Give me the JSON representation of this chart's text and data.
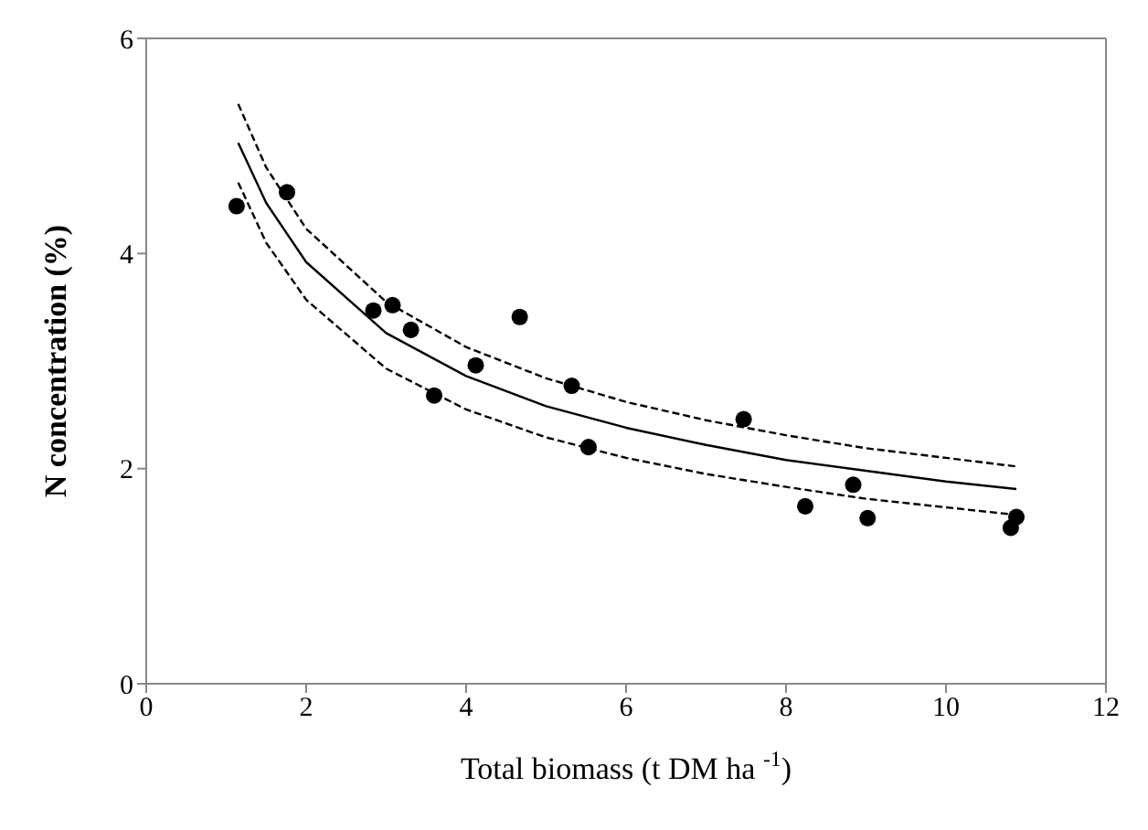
{
  "chart_data": {
    "type": "scatter",
    "xlabel": "Total biomass (t DM ha $^{-1}$)",
    "ylabel": "N concentration (%)",
    "xlim": [
      0,
      12
    ],
    "xticks": [
      0,
      2,
      4,
      6,
      8,
      10,
      12
    ],
    "ylim": [
      0,
      6
    ],
    "yticks": [
      0,
      2,
      4,
      6
    ],
    "grid": false,
    "legend": false,
    "series": [
      {
        "color": "#000000",
        "marker": "circle",
        "x": [
          1.13,
          1.76,
          2.84,
          3.08,
          3.31,
          3.6,
          4.12,
          4.67,
          5.32,
          5.53,
          7.47,
          8.24,
          8.84,
          9.02,
          10.88,
          10.81
        ],
        "values": [
          4.44,
          4.57,
          3.47,
          3.52,
          3.29,
          2.68,
          2.96,
          3.41,
          2.77,
          2.2,
          2.46,
          1.65,
          1.85,
          1.54,
          1.55,
          1.45
        ]
      },
      {
        "type": "line",
        "color": "#000000",
        "marker": "none",
        "line_style": "solid",
        "x": [
          1.15,
          1.5,
          2,
          3,
          4,
          5,
          6,
          7,
          8,
          9,
          10,
          10.88
        ],
        "values": [
          5.03,
          4.47,
          3.92,
          3.26,
          2.86,
          2.58,
          2.38,
          2.22,
          2.08,
          1.98,
          1.88,
          1.81
        ]
      },
      {
        "type": "line",
        "color": "#000000",
        "marker": "none",
        "line_style": "dashed",
        "x": [
          1.15,
          1.5,
          2,
          3,
          4,
          5,
          6,
          7,
          8,
          9,
          10,
          10.88
        ],
        "values": [
          5.39,
          4.8,
          4.23,
          3.55,
          3.13,
          2.84,
          2.62,
          2.45,
          2.31,
          2.19,
          2.1,
          2.02
        ]
      },
      {
        "type": "line",
        "color": "#000000",
        "marker": "none",
        "line_style": "dashed",
        "x": [
          1.15,
          1.5,
          2,
          3,
          4,
          5,
          6,
          7,
          8,
          9,
          10,
          10.88
        ],
        "values": [
          4.66,
          4.1,
          3.57,
          2.93,
          2.55,
          2.29,
          2.1,
          1.95,
          1.83,
          1.72,
          1.64,
          1.57
        ]
      }
    ]
  }
}
